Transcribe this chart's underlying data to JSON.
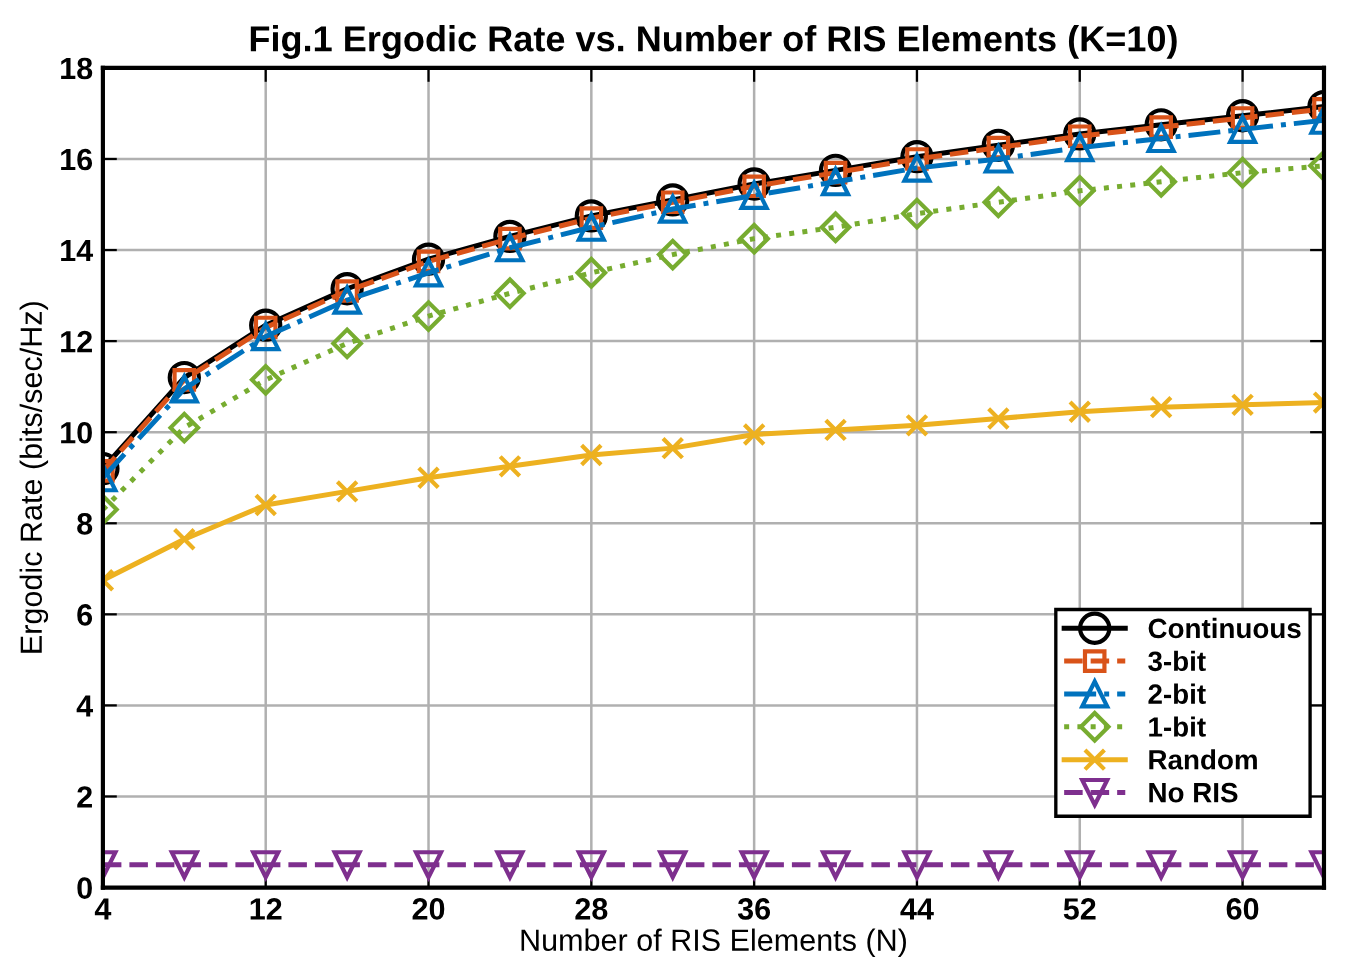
{
  "chart_data": {
    "type": "line",
    "title": "Fig.1 Ergodic Rate vs. Number of RIS Elements (K=10)",
    "xlabel": "Number of RIS Elements (N)",
    "ylabel": "Ergodic Rate (bits/sec/Hz)",
    "x": [
      4,
      8,
      12,
      16,
      20,
      24,
      28,
      32,
      36,
      40,
      44,
      48,
      52,
      56,
      60,
      64
    ],
    "series": [
      {
        "name": "Continuous",
        "color": "#000000",
        "marker": "circle",
        "line_style": "solid",
        "values": [
          9.2,
          11.2,
          12.35,
          13.15,
          13.8,
          14.3,
          14.75,
          15.1,
          15.45,
          15.75,
          16.05,
          16.3,
          16.55,
          16.75,
          16.95,
          17.15
        ]
      },
      {
        "name": "3-bit",
        "color": "#d95319",
        "marker": "square",
        "line_style": "dashed",
        "values": [
          9.15,
          11.15,
          12.3,
          13.1,
          13.75,
          14.25,
          14.7,
          15.05,
          15.4,
          15.7,
          16.0,
          16.25,
          16.5,
          16.7,
          16.9,
          17.1
        ]
      },
      {
        "name": "2-bit",
        "color": "#0072bd",
        "marker": "triangle",
        "line_style": "dashdot",
        "values": [
          9.0,
          10.95,
          12.1,
          12.9,
          13.5,
          14.05,
          14.5,
          14.9,
          15.2,
          15.5,
          15.8,
          16.0,
          16.25,
          16.45,
          16.65,
          16.85
        ]
      },
      {
        "name": "1-bit",
        "color": "#77ac30",
        "marker": "diamond",
        "line_style": "dotted",
        "values": [
          8.3,
          10.1,
          11.15,
          11.95,
          12.55,
          13.05,
          13.5,
          13.9,
          14.25,
          14.5,
          14.8,
          15.05,
          15.3,
          15.5,
          15.7,
          15.85
        ]
      },
      {
        "name": "Random",
        "color": "#edb120",
        "marker": "cross",
        "line_style": "solid",
        "values": [
          6.75,
          7.65,
          8.4,
          8.7,
          9.0,
          9.25,
          9.5,
          9.65,
          9.95,
          10.05,
          10.15,
          10.3,
          10.45,
          10.55,
          10.6,
          10.65
        ]
      },
      {
        "name": "No RIS",
        "color": "#7e2f8e",
        "marker": "triangle_down",
        "line_style": "dashed",
        "values": [
          0.5,
          0.5,
          0.5,
          0.5,
          0.5,
          0.5,
          0.5,
          0.5,
          0.5,
          0.5,
          0.5,
          0.5,
          0.5,
          0.5,
          0.5,
          0.5
        ]
      }
    ],
    "xlim": [
      4,
      64
    ],
    "xticks": [
      4,
      12,
      20,
      28,
      36,
      44,
      52,
      60
    ],
    "ylim": [
      0,
      18
    ],
    "yticks": [
      0,
      2,
      4,
      6,
      8,
      10,
      12,
      14,
      16,
      18
    ],
    "grid": true,
    "legend": "bottom right"
  }
}
